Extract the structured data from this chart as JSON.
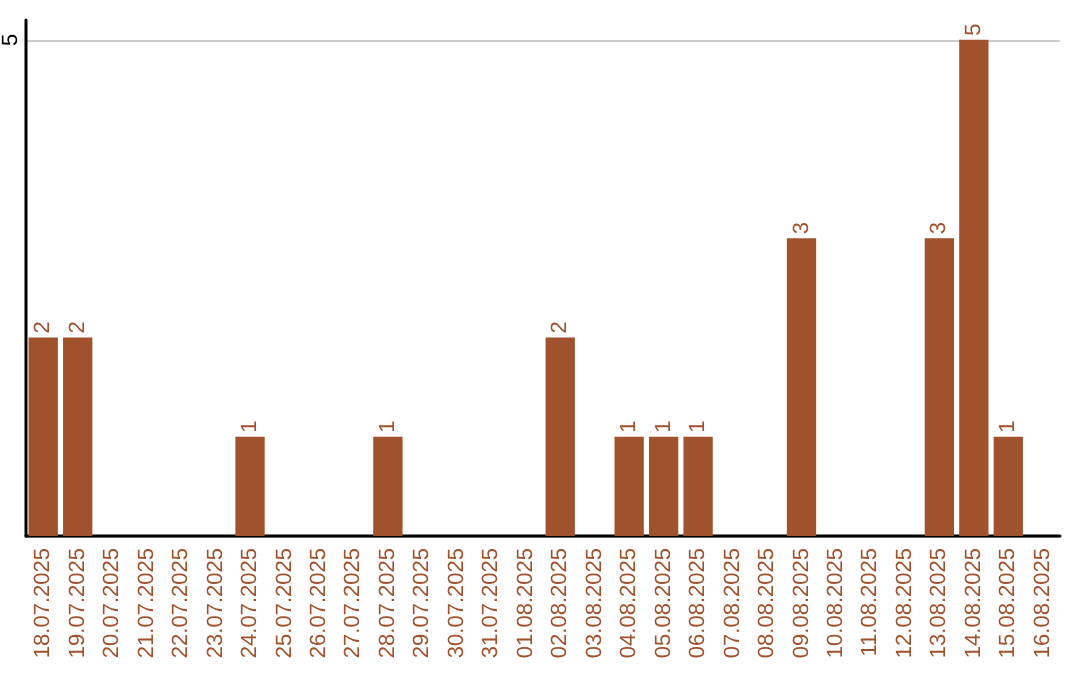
{
  "chart_data": {
    "type": "bar",
    "categories": [
      "18.07.2025",
      "19.07.2025",
      "20.07.2025",
      "21.07.2025",
      "22.07.2025",
      "23.07.2025",
      "24.07.2025",
      "25.07.2025",
      "26.07.2025",
      "27.07.2025",
      "28.07.2025",
      "29.07.2025",
      "30.07.2025",
      "31.07.2025",
      "01.08.2025",
      "02.08.2025",
      "03.08.2025",
      "04.08.2025",
      "05.08.2025",
      "06.08.2025",
      "07.08.2025",
      "08.08.2025",
      "09.08.2025",
      "10.08.2025",
      "11.08.2025",
      "12.08.2025",
      "13.08.2025",
      "14.08.2025",
      "15.08.2025",
      "16.08.2025"
    ],
    "values": [
      2,
      2,
      0,
      0,
      0,
      0,
      1,
      0,
      0,
      0,
      1,
      0,
      0,
      0,
      0,
      2,
      0,
      1,
      1,
      1,
      0,
      0,
      3,
      0,
      0,
      0,
      3,
      5,
      1,
      0
    ],
    "value_labels": [
      "2",
      "2",
      null,
      null,
      null,
      null,
      "1",
      null,
      null,
      null,
      "1",
      null,
      null,
      null,
      null,
      "2",
      null,
      "1",
      "1",
      "1",
      null,
      null,
      "3",
      null,
      null,
      null,
      "3",
      "5",
      "1",
      null
    ],
    "color": "#a0522d",
    "ylim": [
      0,
      5.2
    ],
    "yticks": [
      {
        "value": 0,
        "label": null
      },
      5
    ],
    "grid": "y"
  }
}
